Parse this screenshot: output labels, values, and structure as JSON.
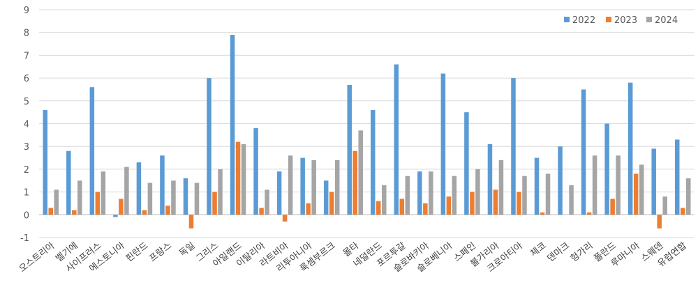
{
  "chart_data": {
    "type": "bar",
    "categories": [
      "오스트리아",
      "벨기에",
      "사이프러스",
      "에스토니아",
      "핀란드",
      "프랑스",
      "독일",
      "그리스",
      "아일랜드",
      "이탈리아",
      "라트비아",
      "리투아니아",
      "룩셈부르크",
      "몰타",
      "네덜란드",
      "포르투갈",
      "슬로바키아",
      "슬로베니아",
      "스페인",
      "불가리아",
      "크로아티아",
      "체코",
      "덴마크",
      "헝가리",
      "폴란드",
      "루마니아",
      "스웨덴",
      "유럽연합"
    ],
    "series": [
      {
        "name": "2022",
        "color": "#5B9BD5",
        "values": [
          4.6,
          2.8,
          5.6,
          -0.1,
          2.3,
          2.6,
          1.6,
          6.0,
          7.9,
          3.8,
          1.9,
          2.5,
          1.5,
          5.7,
          4.6,
          6.6,
          1.9,
          6.2,
          4.5,
          3.1,
          6.0,
          2.5,
          3.0,
          5.5,
          4.0,
          5.8,
          2.9,
          3.3
        ]
      },
      {
        "name": "2023",
        "color": "#ED7D31",
        "values": [
          0.3,
          0.2,
          1.0,
          0.7,
          0.2,
          0.4,
          -0.6,
          1.0,
          3.2,
          0.3,
          -0.3,
          0.5,
          1.0,
          2.8,
          0.6,
          0.7,
          0.5,
          0.8,
          1.0,
          1.1,
          1.0,
          0.1,
          0.0,
          0.1,
          0.7,
          1.8,
          -0.6,
          0.3
        ]
      },
      {
        "name": "2024",
        "color": "#A5A5A5",
        "values": [
          1.1,
          1.5,
          1.9,
          2.1,
          1.4,
          1.5,
          1.4,
          2.0,
          3.1,
          1.1,
          2.6,
          2.4,
          2.4,
          3.7,
          1.3,
          1.7,
          1.9,
          1.7,
          2.0,
          2.4,
          1.7,
          1.8,
          1.3,
          2.6,
          2.6,
          2.2,
          0.8,
          1.6
        ]
      }
    ],
    "ylim": [
      -1,
      9
    ],
    "yticks": [
      -1,
      0,
      1,
      2,
      3,
      4,
      5,
      6,
      7,
      8,
      9
    ],
    "grid": true,
    "legend": "top-right",
    "title": "",
    "xlabel": "",
    "ylabel": ""
  }
}
